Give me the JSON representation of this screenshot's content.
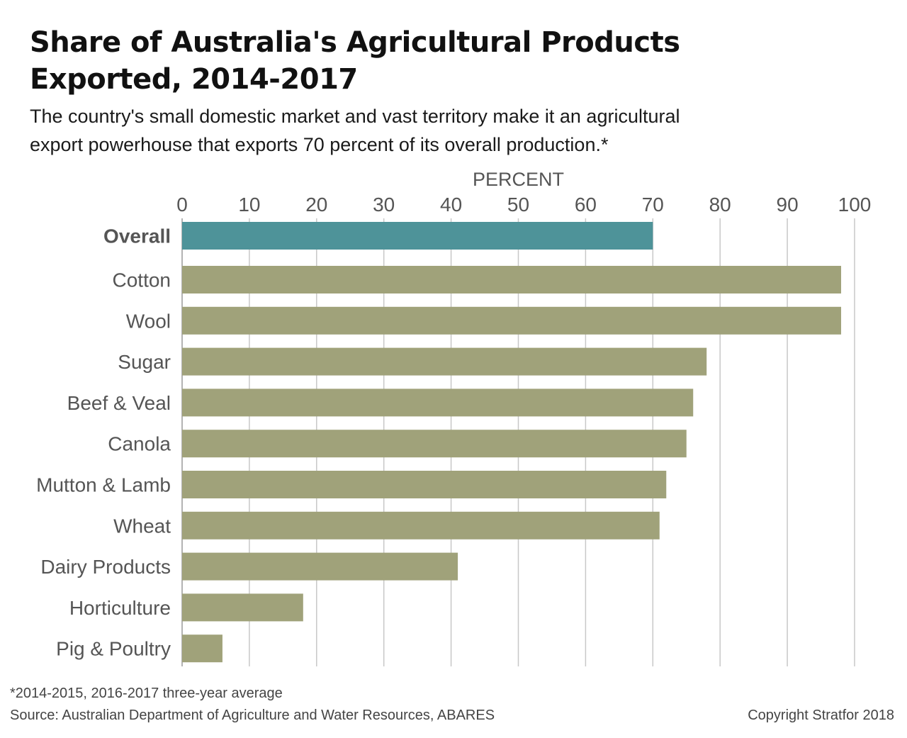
{
  "title_line1": "Share of Australia's Agricultural Products",
  "title_line2": "Exported, 2014-2017",
  "subtitle_line1": "The country's small domestic market and vast territory make it an agricultural",
  "subtitle_line2": "export powerhouse that exports 70 percent of its overall production.*",
  "footnote": "*2014-2015, 2016-2017 three-year average",
  "source": "Source: Australian Department of Agriculture and Water Resources, ABARES",
  "copyright": "Copyright Stratfor 2018",
  "colors": {
    "highlight": "#4e9399",
    "bar": "#a0a27a",
    "grid": "#c8c8c8",
    "text": "#555555"
  },
  "chart_data": {
    "type": "bar",
    "orientation": "horizontal",
    "axis_label": "PERCENT",
    "axis_position": "top",
    "xlim": [
      0,
      100
    ],
    "ticks": [
      0,
      10,
      20,
      30,
      40,
      50,
      60,
      70,
      80,
      90,
      100
    ],
    "grid": true,
    "highlight_category": "Overall",
    "categories": [
      "Overall",
      "Cotton",
      "Wool",
      "Sugar",
      "Beef & Veal",
      "Canola",
      "Mutton & Lamb",
      "Wheat",
      "Dairy Products",
      "Horticulture",
      "Pig & Poultry"
    ],
    "values": [
      70,
      98,
      98,
      78,
      76,
      75,
      72,
      71,
      41,
      18,
      6
    ]
  }
}
